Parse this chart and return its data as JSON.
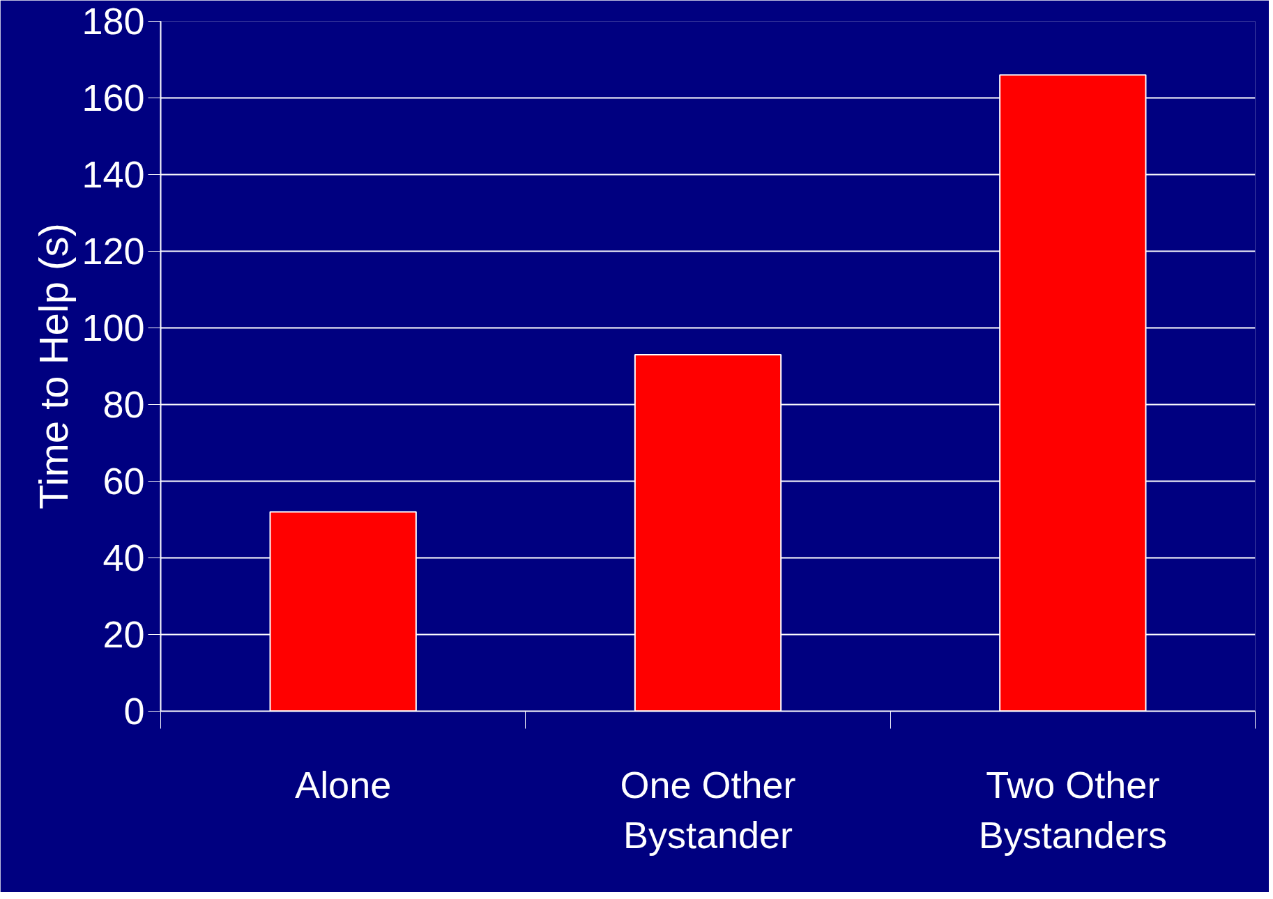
{
  "chart_data": {
    "type": "bar",
    "ylabel": "Time to Help (s)",
    "categories": [
      "Alone",
      "One Other Bystander",
      "Two Other Bystanders"
    ],
    "values": [
      52,
      93,
      166
    ],
    "color": "#ff0000",
    "ylim": [
      0,
      180
    ],
    "yticks": [
      0,
      20,
      40,
      60,
      80,
      100,
      120,
      140,
      160,
      180
    ],
    "grid": "y"
  }
}
